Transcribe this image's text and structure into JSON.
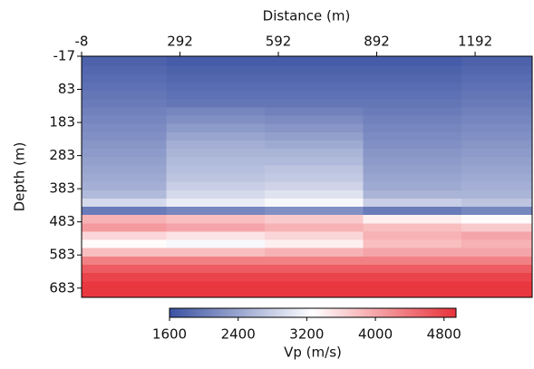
{
  "chart_data": {
    "type": "heatmap",
    "x_label": "Distance (m)",
    "y_label": "Depth (m)",
    "colorbar_label": "Vp (m/s)",
    "x": [
      100,
      400,
      700,
      1000,
      1300
    ],
    "y": [
      0,
      25,
      50,
      75,
      100,
      125,
      150,
      175,
      200,
      225,
      250,
      275,
      300,
      325,
      350,
      375,
      400,
      425,
      450,
      475,
      500,
      525,
      550,
      575,
      600,
      625,
      650,
      675,
      700
    ],
    "z": [
      [
        1750,
        1700,
        1700,
        1700,
        1750
      ],
      [
        1800,
        1750,
        1750,
        1750,
        1800
      ],
      [
        1850,
        1800,
        1800,
        1800,
        1850
      ],
      [
        1900,
        1850,
        1850,
        1850,
        1900
      ],
      [
        1950,
        1900,
        1900,
        1900,
        1950
      ],
      [
        2000,
        1950,
        1950,
        1950,
        2000
      ],
      [
        2050,
        2100,
        2050,
        2000,
        2050
      ],
      [
        2100,
        2200,
        2150,
        2050,
        2100
      ],
      [
        2150,
        2300,
        2250,
        2100,
        2150
      ],
      [
        2200,
        2400,
        2350,
        2150,
        2200
      ],
      [
        2250,
        2500,
        2450,
        2200,
        2250
      ],
      [
        2300,
        2550,
        2550,
        2250,
        2300
      ],
      [
        2350,
        2600,
        2600,
        2300,
        2350
      ],
      [
        2400,
        2650,
        2700,
        2350,
        2400
      ],
      [
        2450,
        2700,
        2750,
        2400,
        2450
      ],
      [
        2500,
        2800,
        2850,
        2450,
        2500
      ],
      [
        2600,
        2900,
        3000,
        2550,
        2550
      ],
      [
        2900,
        3100,
        3200,
        2800,
        2700
      ],
      [
        2000,
        2100,
        2200,
        2000,
        2100
      ],
      [
        3900,
        3800,
        3700,
        3400,
        3300
      ],
      [
        4100,
        4000,
        3900,
        3800,
        3700
      ],
      [
        3600,
        3500,
        3600,
        3900,
        4000
      ],
      [
        3300,
        3200,
        3400,
        3800,
        3900
      ],
      [
        3800,
        3800,
        3900,
        4000,
        4000
      ],
      [
        4300,
        4300,
        4300,
        4300,
        4300
      ],
      [
        4600,
        4600,
        4600,
        4600,
        4600
      ],
      [
        4800,
        4800,
        4800,
        4800,
        4800
      ],
      [
        4900,
        4900,
        4900,
        4900,
        4900
      ],
      [
        4900,
        4900,
        4900,
        4900,
        4900
      ]
    ],
    "xlim": [
      -8,
      1366
    ],
    "xticks": [
      -8,
      292,
      592,
      892,
      1192
    ],
    "ylim": [
      -17,
      711
    ],
    "yticks": [
      -17,
      83,
      183,
      283,
      383,
      483,
      583,
      683
    ],
    "clim": [
      1600,
      4940
    ],
    "cticks": [
      1600,
      2400,
      3200,
      4000,
      4800
    ],
    "colormap": [
      "#3b52a3",
      "#ffffff",
      "#e8323a"
    ]
  }
}
